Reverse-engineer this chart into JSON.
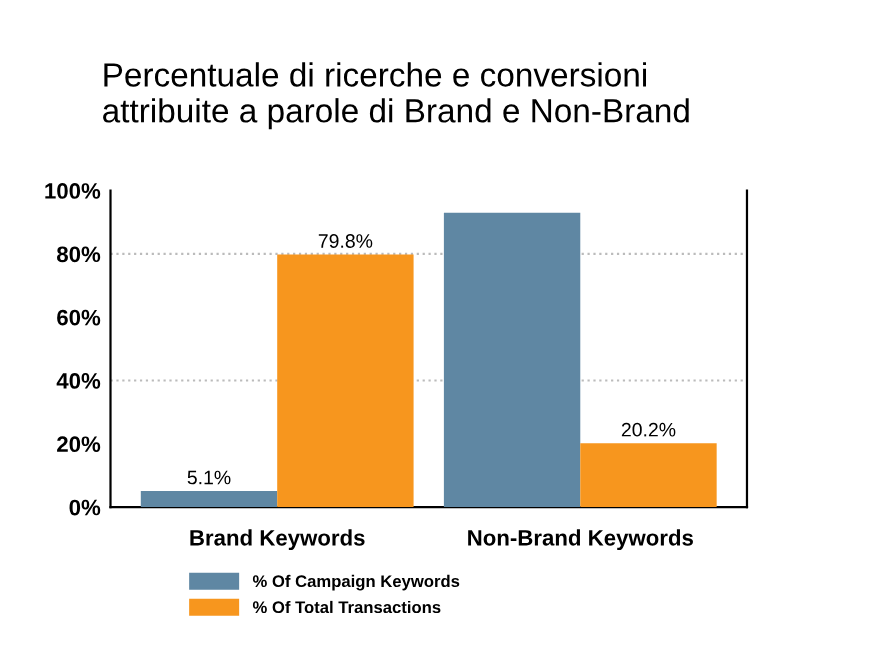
{
  "chart_data": {
    "type": "bar",
    "title": "Percentuale di ricerche e conversioni\nattribuite a parole di Brand e Non-Brand",
    "categories": [
      "Brand Keywords",
      "Non-Brand Keywords"
    ],
    "series": [
      {
        "name": "% Of Campaign Keywords",
        "color": "#5f87a3",
        "values": [
          5.1,
          93
        ],
        "value_labels": [
          "5.1%",
          null
        ]
      },
      {
        "name": "% Of Total Transactions",
        "color": "#f7961e",
        "values": [
          79.8,
          20.2
        ],
        "value_labels": [
          "79.8%",
          "20.2%"
        ]
      }
    ],
    "ylim": [
      0,
      100
    ],
    "yticks": [
      {
        "value": 0,
        "label": "0%"
      },
      {
        "value": 20,
        "label": "20%"
      },
      {
        "value": 40,
        "label": "40%"
      },
      {
        "value": 60,
        "label": "60%"
      },
      {
        "value": 80,
        "label": "80%"
      },
      {
        "value": 100,
        "label": "100%"
      }
    ],
    "ref_lines": [
      {
        "axis": "y",
        "value": 40,
        "line_style": "dotted",
        "color": "#bbbbbb"
      },
      {
        "axis": "y",
        "value": 80,
        "line_style": "dotted",
        "color": "#bbbbbb"
      }
    ],
    "grid": false,
    "legend": "bottom"
  }
}
